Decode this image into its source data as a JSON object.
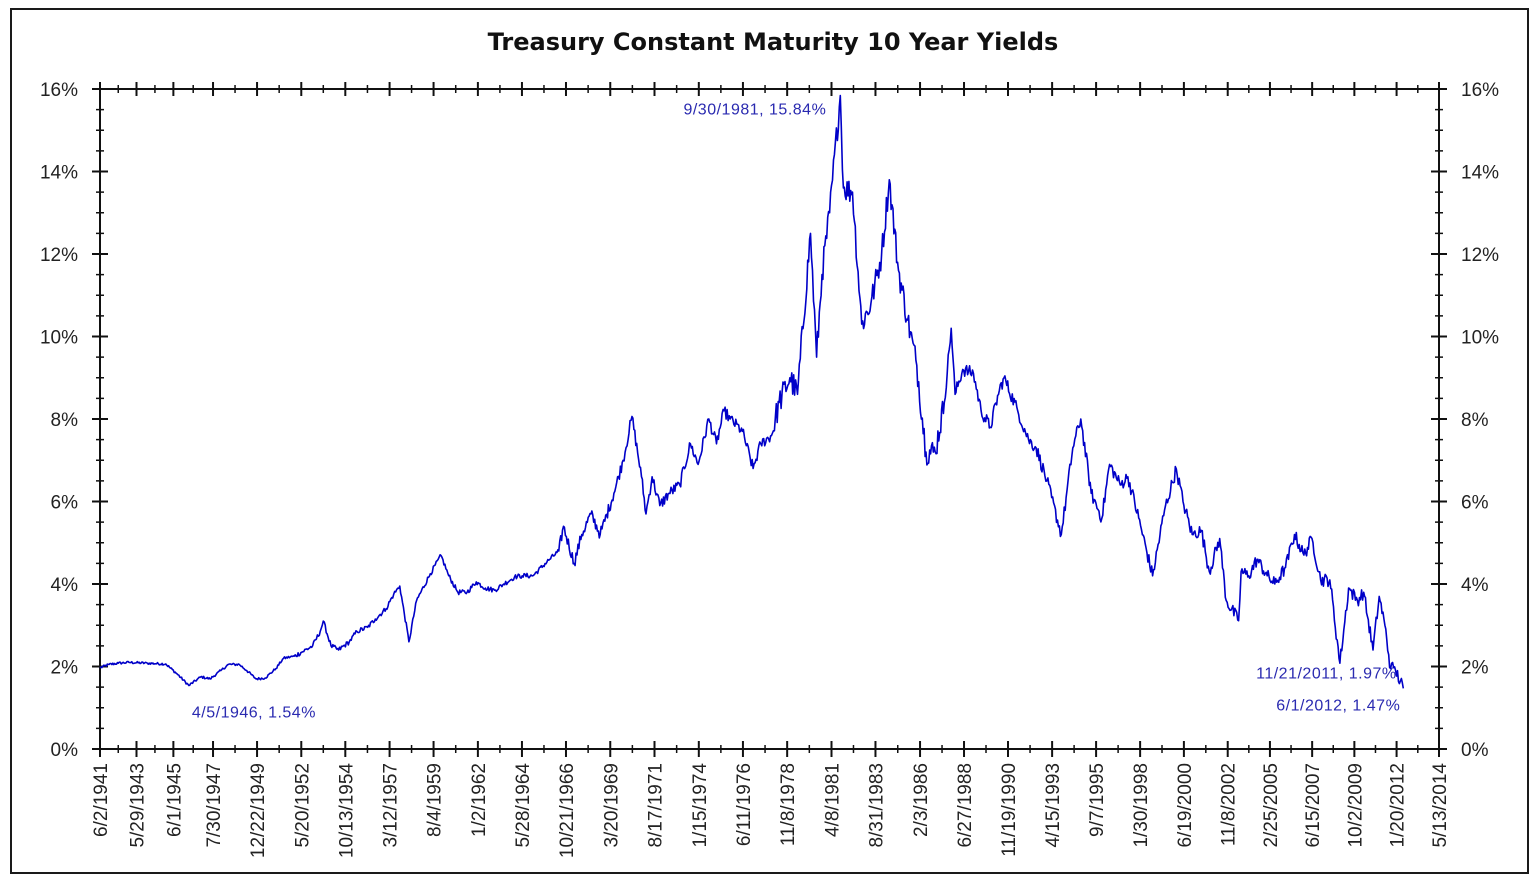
{
  "chart_data": {
    "type": "line",
    "title": "Treasury Constant Maturity 10 Year Yields",
    "xlabel": "",
    "ylabel": "",
    "ylim": [
      0,
      16
    ],
    "y_ticks": [
      "0%",
      "2%",
      "4%",
      "6%",
      "8%",
      "10%",
      "12%",
      "14%",
      "16%"
    ],
    "x_tick_labels": [
      "6/2/1941",
      "5/29/1943",
      "6/1/1945",
      "7/30/1947",
      "12/22/1949",
      "5/20/1952",
      "10/13/1954",
      "3/12/1957",
      "8/4/1959",
      "1/2/1962",
      "5/28/1964",
      "10/21/1966",
      "3/20/1969",
      "8/17/1971",
      "1/15/1974",
      "6/11/1976",
      "11/8/1978",
      "4/8/1981",
      "8/31/1983",
      "2/3/1986",
      "6/27/1988",
      "11/19/1990",
      "4/15/1993",
      "9/7/1995",
      "1/30/1998",
      "6/19/2000",
      "11/8/2002",
      "2/25/2005",
      "6/15/2007",
      "10/2/2009",
      "1/20/2012",
      "5/13/2014"
    ],
    "line_color": "#0000c8",
    "grid": false,
    "dual_y_axis": true,
    "series": [
      {
        "x": [
          "1941-06-02",
          "1941-12-01",
          "1942-06-01",
          "1943-01-01",
          "1944-01-01",
          "1945-01-01",
          "1945-09-01",
          "1946-04-05",
          "1946-12-01",
          "1947-06-01",
          "1948-01-01",
          "1948-06-01",
          "1949-01-01",
          "1949-06-01",
          "1949-12-01",
          "1950-06-01",
          "1951-01-01",
          "1951-06-01",
          "1952-01-01",
          "1952-06-01",
          "1953-01-01",
          "1953-06-01",
          "1953-08-01",
          "1954-01-01",
          "1954-06-01",
          "1955-01-01",
          "1955-06-01",
          "1956-01-01",
          "1956-06-01",
          "1957-01-01",
          "1957-06-01",
          "1957-10-01",
          "1958-04-01",
          "1958-09-01",
          "1959-06-01",
          "1959-12-31",
          "1960-06-01",
          "1960-12-01",
          "1961-06-01",
          "1961-12-01",
          "1962-06-01",
          "1962-12-01",
          "1963-06-01",
          "1964-01-01",
          "1964-06-01",
          "1965-01-01",
          "1965-12-01",
          "1966-06-01",
          "1966-09-01",
          "1967-04-01",
          "1967-09-01",
          "1968-03-01",
          "1968-09-01",
          "1969-06-01",
          "1969-12-01",
          "1970-05-26",
          "1970-12-01",
          "1971-03-01",
          "1971-07-01",
          "1971-12-01",
          "1972-06-01",
          "1973-01-01",
          "1973-08-01",
          "1974-01-01",
          "1974-08-01",
          "1975-01-01",
          "1975-06-01",
          "1975-10-01",
          "1976-06-01",
          "1976-12-31",
          "1977-06-01",
          "1978-01-01",
          "1978-06-01",
          "1979-01-01",
          "1979-06-01",
          "1980-02-15",
          "1980-06-15",
          "1980-10-01",
          "1981-03-01",
          "1981-09-30",
          "1981-12-01",
          "1982-06-01",
          "1982-12-01",
          "1983-06-01",
          "1984-01-01",
          "1984-06-01",
          "1984-12-01",
          "1985-06-01",
          "1985-12-01",
          "1986-06-01",
          "1986-12-01",
          "1987-06-01",
          "1987-10-15",
          "1988-01-01",
          "1988-06-01",
          "1989-01-01",
          "1989-06-01",
          "1989-12-01",
          "1990-06-01",
          "1990-09-01",
          "1991-06-01",
          "1992-01-01",
          "1992-06-01",
          "1993-01-01",
          "1993-10-15",
          "1994-06-01",
          "1994-11-07",
          "1995-06-01",
          "1995-12-31",
          "1996-06-01",
          "1997-01-01",
          "1997-06-01",
          "1998-01-01",
          "1998-10-05",
          "1999-06-01",
          "2000-01-20",
          "2000-06-01",
          "2000-12-01",
          "2001-06-01",
          "2001-11-07",
          "2002-06-01",
          "2002-10-09",
          "2003-06-13",
          "2003-08-01",
          "2004-01-01",
          "2004-06-14",
          "2005-01-01",
          "2005-06-01",
          "2006-01-01",
          "2006-06-28",
          "2007-01-01",
          "2007-06-12",
          "2007-12-01",
          "2008-06-01",
          "2008-12-18",
          "2009-06-10",
          "2009-12-01",
          "2010-04-05",
          "2010-10-08",
          "2011-02-08",
          "2011-06-01",
          "2011-09-22",
          "2011-11-21",
          "2012-01-01",
          "2012-06-01"
        ],
        "y": [
          1.97,
          2.05,
          2.08,
          2.1,
          2.08,
          2.06,
          1.8,
          1.54,
          1.75,
          1.7,
          1.9,
          2.05,
          2.05,
          1.9,
          1.7,
          1.72,
          1.95,
          2.2,
          2.25,
          2.35,
          2.5,
          2.85,
          3.1,
          2.5,
          2.4,
          2.6,
          2.85,
          2.95,
          3.15,
          3.4,
          3.75,
          3.95,
          2.6,
          3.6,
          4.25,
          4.69,
          4.2,
          3.8,
          3.8,
          4.05,
          3.9,
          3.85,
          4.0,
          4.17,
          4.2,
          4.2,
          4.6,
          4.8,
          5.4,
          4.5,
          5.2,
          5.7,
          5.2,
          6.2,
          7.0,
          8.06,
          6.6,
          5.7,
          6.6,
          5.9,
          6.2,
          6.4,
          7.4,
          6.9,
          8.0,
          7.4,
          8.2,
          8.0,
          7.7,
          6.8,
          7.4,
          7.6,
          8.4,
          9.0,
          8.6,
          12.5,
          9.5,
          11.5,
          13.0,
          15.84,
          13.6,
          13.5,
          10.3,
          10.8,
          12.0,
          13.8,
          11.6,
          10.4,
          9.3,
          7.2,
          7.2,
          8.4,
          10.2,
          8.6,
          9.2,
          9.1,
          8.2,
          7.8,
          8.7,
          9.0,
          8.2,
          7.5,
          7.3,
          6.5,
          5.2,
          7.3,
          8.0,
          6.2,
          5.6,
          6.9,
          6.4,
          6.6,
          5.6,
          4.2,
          5.8,
          6.79,
          6.0,
          5.2,
          5.3,
          4.3,
          5.1,
          3.6,
          3.11,
          4.3,
          4.2,
          4.6,
          4.2,
          4.0,
          4.4,
          5.2,
          4.7,
          5.1,
          4.1,
          4.1,
          2.08,
          3.9,
          3.6,
          3.8,
          2.4,
          3.7,
          3.0,
          1.95,
          1.97,
          1.9,
          1.47
        ]
      }
    ],
    "annotations": [
      {
        "text": "9/30/1981, 15.84%",
        "x": "1981-09-30",
        "y": 15.84
      },
      {
        "text": "4/5/1946, 1.54%",
        "x": "1946-04-05",
        "y": 1.54
      },
      {
        "text": "11/21/2011, 1.97%",
        "x": "2011-11-21",
        "y": 1.97
      },
      {
        "text": "6/1/2012, 1.47%",
        "x": "2012-06-01",
        "y": 1.47
      }
    ]
  }
}
